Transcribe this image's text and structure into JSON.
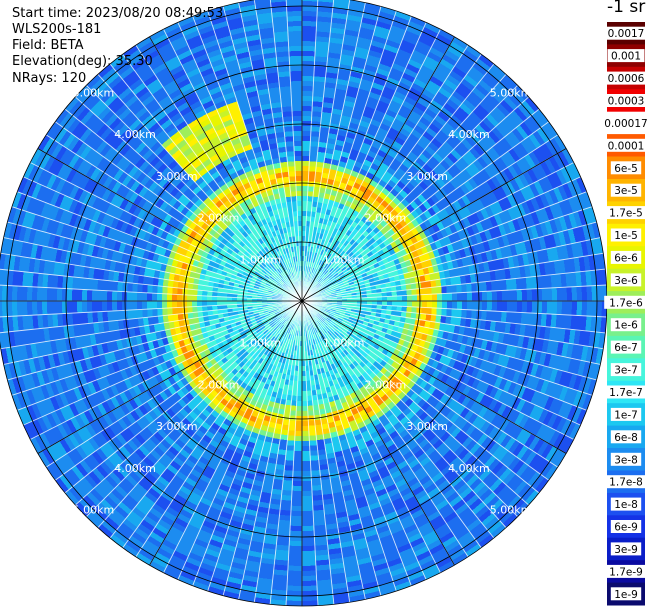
{
  "header": {
    "start_time": "Start time: 2023/08/20 08:49:53",
    "instrument": "WLS200s-181",
    "field": "Field: BETA",
    "elevation": "Elevation(deg): 35.30",
    "nrays": "NRays: 120"
  },
  "chart_data": {
    "type": "heatmap",
    "projection": "polar-ppi",
    "title": "",
    "field": "BETA",
    "units": "-1 sr",
    "nrays": 120,
    "elevation_deg": 35.3,
    "range_rings_km": [
      1.0,
      2.0,
      3.0,
      4.0,
      5.0
    ],
    "range_labels": [
      "1.00km",
      "2.00km",
      "3.00km",
      "4.00km",
      "5.00km"
    ],
    "max_range_km": 6.3,
    "azimuth_gridlines_deg": [
      0,
      30,
      60,
      90,
      120,
      150,
      180,
      210,
      240,
      270,
      300,
      330
    ],
    "features": {
      "aerosol_ring_range_km": 2.1,
      "aerosol_ring_level": "1.7e-5",
      "inner_region_level": "1.7e-7",
      "background_level": "1.7e-8",
      "plume_azimuth_deg": 330,
      "plume_range_km": 3.1
    },
    "colorbar": {
      "labels": [
        "0.0017",
        "0.001",
        "0.0006",
        "0.0003",
        "0.00017",
        "0.0001",
        "6e-5",
        "3e-5",
        "1.7e-5",
        "1e-5",
        "6e-6",
        "3e-6",
        "1.7e-6",
        "1e-6",
        "6e-7",
        "3e-7",
        "1.7e-7",
        "1e-7",
        "6e-8",
        "3e-8",
        "1.7e-8",
        "1e-8",
        "6e-9",
        "3e-9",
        "1.7e-9",
        "1e-9"
      ],
      "colors": [
        "#5a0000",
        "#8e0000",
        "#c60000",
        "#f20000",
        "#ffffff",
        "#ff5a00",
        "#ff8c00",
        "#ffb400",
        "#ffd200",
        "#fff000",
        "#e8f500",
        "#c8f22a",
        "#9eee5a",
        "#78f08c",
        "#5af5b4",
        "#46f5dc",
        "#2ee6f5",
        "#1cc8f0",
        "#18a8f0",
        "#1c8cf0",
        "#1c6ef0",
        "#1c50f0",
        "#1432e6",
        "#0a1ec8",
        "#0a0aa0",
        "#0a0a6e"
      ]
    }
  }
}
